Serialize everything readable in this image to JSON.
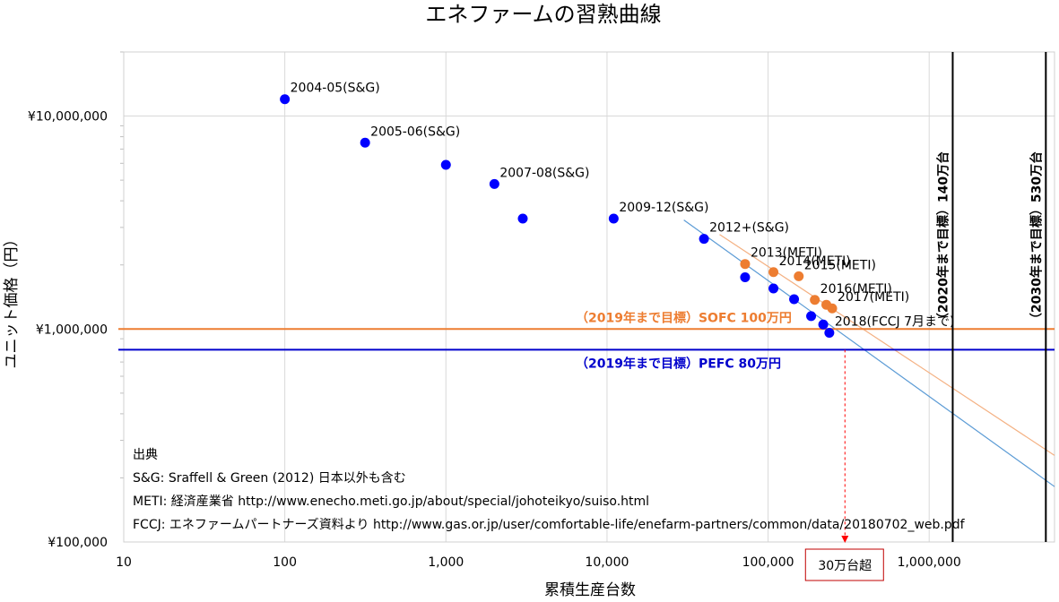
{
  "chart_data": {
    "type": "scatter",
    "title": "エネファームの習熟曲線",
    "xlabel": "累積生産台数",
    "ylabel": "ユニット価格（円）",
    "x_scale": "log",
    "y_scale": "log",
    "xlim": [
      10,
      6000000
    ],
    "ylim": [
      100000,
      20000000
    ],
    "x_ticks": [
      {
        "value": 10,
        "label": "10"
      },
      {
        "value": 100,
        "label": "100"
      },
      {
        "value": 1000,
        "label": "1,000"
      },
      {
        "value": 10000,
        "label": "10,000"
      },
      {
        "value": 100000,
        "label": "100,000"
      },
      {
        "value": 1000000,
        "label": "1,000,000"
      }
    ],
    "y_ticks": [
      {
        "value": 100000,
        "label": "¥100,000"
      },
      {
        "value": 1000000,
        "label": "¥1,000,000"
      },
      {
        "value": 10000000,
        "label": "¥10,000,000"
      }
    ],
    "grid": true,
    "colors": {
      "blue": "#0000FF",
      "orange": "#ED7D31",
      "trend_blue": "#5B9BD5",
      "trend_orange": "#F4B183",
      "target_blue": "#0000CC",
      "note_red": "#FF0000"
    },
    "series": [
      {
        "color": "#0000FF",
        "points": [
          {
            "x": 100,
            "y": 12000000,
            "label": "2004-05(S&G)"
          },
          {
            "x": 315,
            "y": 7500000,
            "label": "2005-06(S&G)"
          },
          {
            "x": 1000,
            "y": 5900000
          },
          {
            "x": 2000,
            "y": 4800000,
            "label": "2007-08(S&G)"
          },
          {
            "x": 3000,
            "y": 3300000
          },
          {
            "x": 11000,
            "y": 3300000,
            "label": "2009-12(S&G)"
          },
          {
            "x": 40000,
            "y": 2650000,
            "label": "2012+(S&G)"
          },
          {
            "x": 72000,
            "y": 1750000
          },
          {
            "x": 108000,
            "y": 1550000
          },
          {
            "x": 145000,
            "y": 1380000
          },
          {
            "x": 185000,
            "y": 1150000
          },
          {
            "x": 220000,
            "y": 1050000
          },
          {
            "x": 240000,
            "y": 960000,
            "label": "2018(FCCJ 7月まで)"
          }
        ]
      },
      {
        "color": "#ED7D31",
        "points": [
          {
            "x": 72000,
            "y": 2020000,
            "label": "2013(METI)"
          },
          {
            "x": 108000,
            "y": 1850000,
            "label": "2014(METI)"
          },
          {
            "x": 155000,
            "y": 1770000,
            "label": "2015(METI)"
          },
          {
            "x": 195000,
            "y": 1370000,
            "label": "2016(METI)"
          },
          {
            "x": 230000,
            "y": 1300000
          },
          {
            "x": 250000,
            "y": 1250000,
            "label": "2017(METI)"
          }
        ]
      }
    ],
    "trendlines": [
      {
        "color": "#5B9BD5",
        "from": {
          "x": 30000,
          "y": 3250000
        },
        "to": {
          "x": 6000000,
          "y": 182000
        }
      },
      {
        "color": "#F4B183",
        "from": {
          "x": 50000,
          "y": 2780000
        },
        "to": {
          "x": 6000000,
          "y": 255000
        }
      }
    ],
    "target_lines": [
      {
        "y": 1000000,
        "color": "#ED7D31",
        "label": "（2019年まで目標）SOFC 100万円"
      },
      {
        "y": 800000,
        "color": "#0000CC",
        "label": "（2019年まで目標）PEFC 80万円"
      }
    ],
    "vertical_lines": [
      {
        "x": 1400000,
        "label": "（2020年まで目標）140万台"
      },
      {
        "x": 5300000,
        "label": "（2030年まで目標）530万台"
      }
    ],
    "annotation": {
      "x": 300000,
      "label": "30万台超"
    },
    "sources": [
      "出典",
      "S&G: Sraffell & Green (2012) 日本以外も含む",
      "METI: 経済産業省 http://www.enecho.meti.go.jp/about/special/johoteikyo/suiso.html",
      "FCCJ: エネファームパートナーズ資料より http://www.gas.or.jp/user/comfortable-life/enefarm-partners/common/data/20180702_web.pdf"
    ]
  }
}
